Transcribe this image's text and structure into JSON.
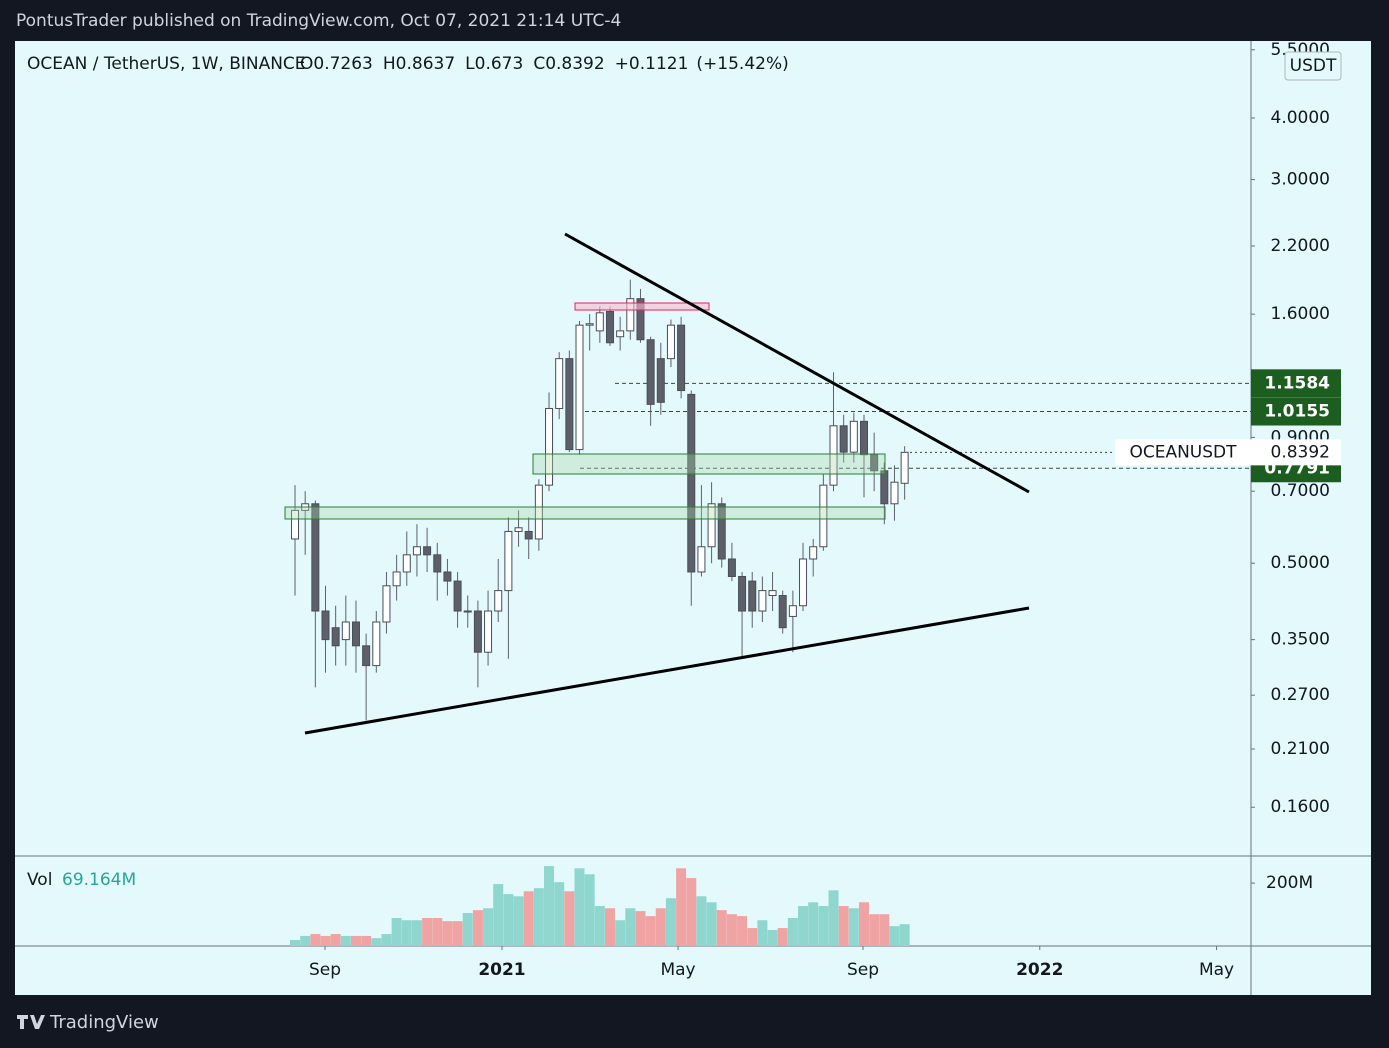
{
  "header": {
    "title": "PontusTrader published on TradingView.com, Oct 07, 2021 21:14 UTC-4"
  },
  "footer": {
    "brand": "TradingView"
  },
  "chart_data": {
    "type": "candlestick",
    "symbol": "OCEAN / TetherUS, 1W, BINANCE",
    "currency": "USDT",
    "ohlc_keys": [
      "O",
      "H",
      "L",
      "C"
    ],
    "change": {
      "value": 0.1121,
      "label": "+0.1121"
    },
    "change_pct": {
      "value": 15.42,
      "label": "(+15.42%)"
    },
    "log_scale": true,
    "grid": false,
    "up_color": "#ffffff",
    "down_color": "#5d606b",
    "categories": [
      null,
      null,
      null,
      null,
      null,
      null,
      null,
      null,
      null,
      null,
      null,
      null,
      null,
      null,
      null,
      null,
      null,
      null,
      null,
      null,
      null,
      null,
      null,
      null,
      null,
      null,
      null,
      null,
      null,
      null,
      null,
      null,
      null,
      null,
      null,
      null,
      null,
      null,
      null,
      null,
      null,
      null,
      null,
      null,
      null,
      null,
      null,
      null,
      null,
      null,
      null,
      null,
      null,
      null,
      null,
      null,
      null,
      null,
      null,
      null,
      null
    ],
    "open": [
      0.56,
      0.64,
      0.66,
      0.4,
      0.37,
      0.35,
      0.38,
      0.34,
      0.31,
      0.38,
      0.45,
      0.48,
      0.52,
      0.54,
      0.52,
      0.48,
      0.46,
      0.4,
      0.4,
      0.33,
      0.4,
      0.44,
      0.58,
      0.58,
      0.56,
      0.72,
      1.03,
      1.3,
      0.85,
      1.52,
      1.48,
      1.62,
      1.44,
      1.48,
      1.72,
      1.42,
      1.3,
      1.3,
      1.52,
      1.1,
      0.48,
      0.54,
      0.66,
      0.51,
      0.47,
      0.46,
      0.4,
      0.43,
      0.43,
      0.39,
      0.41,
      0.51,
      0.54,
      0.72,
      0.95,
      0.84,
      0.97,
      0.83,
      0.77,
      0.66,
      0.7263
    ],
    "high": [
      0.72,
      0.7,
      0.67,
      0.45,
      0.41,
      0.43,
      0.42,
      0.36,
      0.4,
      0.48,
      0.52,
      0.58,
      0.6,
      0.59,
      0.55,
      0.51,
      0.48,
      0.43,
      0.42,
      0.44,
      0.51,
      0.62,
      0.64,
      0.62,
      0.74,
      1.11,
      1.34,
      1.35,
      1.55,
      1.6,
      1.66,
      1.66,
      1.58,
      1.88,
      1.8,
      1.44,
      1.4,
      1.56,
      1.58,
      1.12,
      0.72,
      0.73,
      0.68,
      0.55,
      0.48,
      0.48,
      0.47,
      0.48,
      0.44,
      0.44,
      0.55,
      0.56,
      0.76,
      1.22,
      1.0,
      1.01,
      1.0,
      0.92,
      0.8,
      0.79,
      0.8637
    ],
    "low": [
      0.43,
      0.52,
      0.28,
      0.3,
      0.31,
      0.31,
      0.3,
      0.24,
      0.3,
      0.36,
      0.42,
      0.45,
      0.47,
      0.48,
      0.42,
      0.43,
      0.37,
      0.37,
      0.28,
      0.31,
      0.38,
      0.32,
      0.54,
      0.51,
      0.53,
      0.7,
      0.98,
      0.84,
      0.83,
      1.35,
      1.4,
      1.38,
      1.35,
      1.42,
      1.4,
      0.95,
      1.0,
      1.25,
      1.08,
      0.41,
      0.47,
      0.5,
      0.49,
      0.46,
      0.32,
      0.37,
      0.38,
      0.4,
      0.36,
      0.33,
      0.4,
      0.47,
      0.53,
      0.7,
      0.8,
      0.8,
      0.68,
      0.7,
      0.6,
      0.61,
      0.673
    ],
    "close": [
      0.64,
      0.66,
      0.4,
      0.35,
      0.34,
      0.38,
      0.34,
      0.31,
      0.38,
      0.45,
      0.48,
      0.52,
      0.54,
      0.52,
      0.48,
      0.46,
      0.4,
      0.4,
      0.33,
      0.4,
      0.44,
      0.58,
      0.59,
      0.56,
      0.72,
      1.03,
      1.3,
      0.85,
      1.52,
      1.53,
      1.61,
      1.4,
      1.48,
      1.72,
      1.42,
      1.05,
      1.06,
      1.52,
      1.12,
      0.48,
      0.54,
      0.66,
      0.51,
      0.47,
      0.4,
      0.4,
      0.44,
      0.44,
      0.37,
      0.41,
      0.51,
      0.54,
      0.72,
      0.95,
      0.84,
      0.97,
      0.83,
      0.77,
      0.66,
      0.73,
      0.8392
    ],
    "volume": {
      "name": "Vol",
      "up_color": "#8fd6cf",
      "down_color": "#f0a3a3",
      "values": [
        19,
        32,
        38,
        32,
        38,
        32,
        32,
        32,
        25,
        38,
        89,
        82,
        82,
        89,
        89,
        79,
        79,
        105,
        114,
        120,
        197,
        165,
        158,
        174,
        184,
        254,
        203,
        174,
        247,
        228,
        127,
        120,
        82,
        120,
        111,
        95,
        120,
        152,
        247,
        216,
        158,
        139,
        114,
        101,
        95,
        57,
        82,
        51,
        57,
        89,
        127,
        139,
        127,
        177,
        127,
        120,
        139,
        101,
        101,
        63,
        69.164
      ],
      "value_labels": {
        "60": "69.164M"
      },
      "ylim": [
        0,
        283
      ],
      "yticks": [
        {
          "value": 200,
          "label": "200M"
        }
      ]
    },
    "xlim": [
      -27.56,
      94.09
    ],
    "xticks": [
      {
        "value": 2.95,
        "label": "Sep"
      },
      {
        "value": 20.37,
        "label": "2021"
      },
      {
        "value": 37.7,
        "label": "May"
      },
      {
        "value": 55.9,
        "label": "Sep"
      },
      {
        "value": 73.3,
        "label": "2022"
      },
      {
        "value": 90.7,
        "label": "May"
      }
    ],
    "ylim": [
      0.128,
      5.73
    ],
    "yticks": [
      {
        "value": 5.5,
        "label": "5.5000"
      },
      {
        "value": 4,
        "label": "4.0000"
      },
      {
        "value": 3,
        "label": "3.0000"
      },
      {
        "value": 2.2,
        "label": "2.2000"
      },
      {
        "value": 1.6,
        "label": "1.6000"
      },
      {
        "value": 0.9,
        "label": "0.9000"
      },
      {
        "value": 0.7,
        "label": "0.7000"
      },
      {
        "value": 0.5,
        "label": "0.5000"
      },
      {
        "value": 0.35,
        "label": "0.3500"
      },
      {
        "value": 0.27,
        "label": "0.2700"
      },
      {
        "value": 0.21,
        "label": "0.2100"
      },
      {
        "value": 0.16,
        "label": "0.1600"
      }
    ],
    "price_lines": [
      {
        "value": 1.1584,
        "color": "#1b5e20"
      },
      {
        "value": 1.0155,
        "color": "#1b5e20"
      },
      {
        "value": 0.7791,
        "color": "#1b5e20"
      }
    ],
    "last_price": {
      "name": "OCEANUSDT",
      "value": 0.8392
    }
  }
}
